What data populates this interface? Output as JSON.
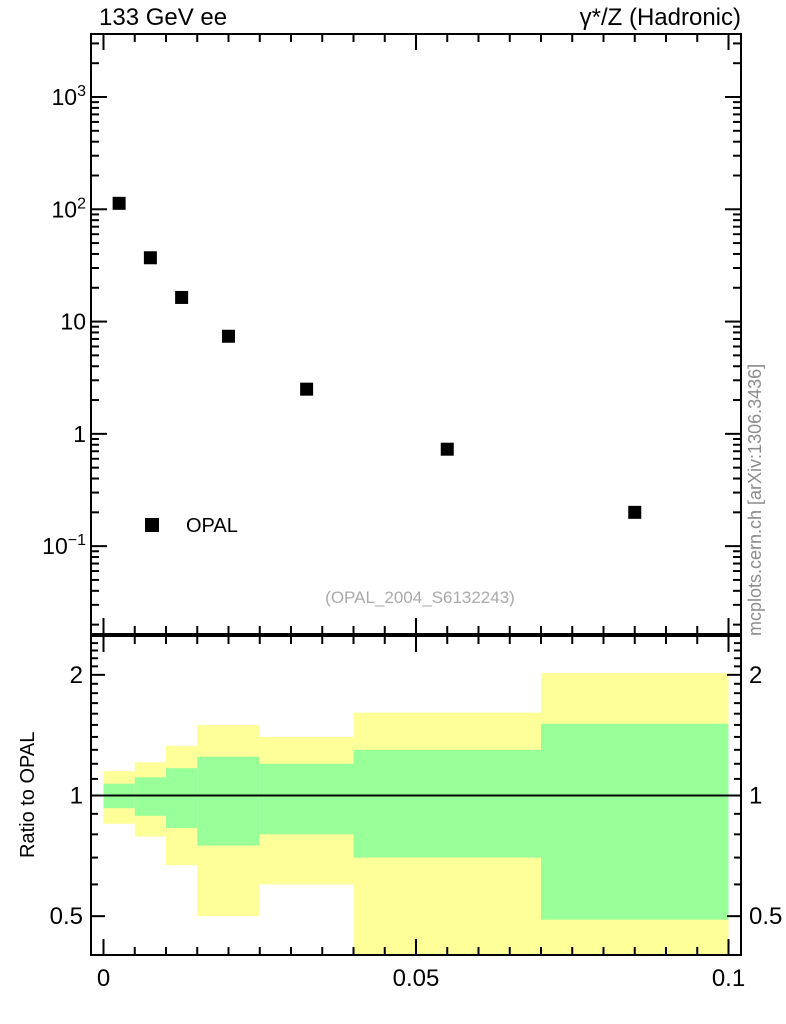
{
  "header": {
    "left_title": "133 GeV ee",
    "right_title": "γ*/Z (Hadronic)"
  },
  "legend": {
    "label": "OPAL",
    "marker": "filled-black-square"
  },
  "watermarks": {
    "analysis": "(OPAL_2004_S6132243)",
    "site": "mcplots.cern.ch [arXiv:1306.3436]"
  },
  "colors": {
    "band_outer": "#ffff99",
    "band_inner": "#99ff99",
    "marker": "#000000",
    "axis": "#000000",
    "watermark_gray": "#aaaaaa",
    "site_gray": "#8c8c8c"
  },
  "chart_data": [
    {
      "type": "scatter",
      "title": "133 GeV ee — γ*/Z (Hadronic)",
      "series": [
        {
          "name": "OPAL",
          "marker": "filled-square",
          "x": [
            0.0025,
            0.0075,
            0.0125,
            0.02,
            0.0325,
            0.055,
            0.085
          ],
          "y": [
            113,
            37,
            16.4,
            7.4,
            2.5,
            0.73,
            0.2
          ]
        }
      ],
      "xlabel": "",
      "ylabel": "",
      "x_range": [
        -0.002,
        0.102
      ],
      "y_range": [
        0.0165,
        3640
      ],
      "y_scale": "log",
      "grid": false,
      "legend_position": "inside-left-bottom",
      "yticks": [
        {
          "v": 1000,
          "base": "10",
          "exp": "3"
        },
        {
          "v": 100,
          "base": "10",
          "exp": "2"
        },
        {
          "v": 10,
          "base": "10",
          "exp": ""
        },
        {
          "v": 1,
          "base": "1",
          "exp": ""
        },
        {
          "v": 0.1,
          "base": "10",
          "exp": "−1"
        }
      ]
    },
    {
      "type": "area",
      "title": "Ratio panel with inner/outer uncertainty bands",
      "ylabel": "Ratio to OPAL",
      "x_range": [
        -0.002,
        0.102
      ],
      "y_range": [
        0.4,
        2.5
      ],
      "y_scale": "log",
      "reference_line": 1,
      "bin_edges": [
        0,
        0.005,
        0.01,
        0.015,
        0.025,
        0.04,
        0.07,
        0.1
      ],
      "band_outer_hi": [
        1.15,
        1.21,
        1.33,
        1.5,
        1.4,
        1.61,
        2.02
      ],
      "band_outer_lo": [
        0.85,
        0.79,
        0.67,
        0.5,
        0.6,
        0.39,
        0.0
      ],
      "band_inner_hi": [
        1.07,
        1.11,
        1.17,
        1.25,
        1.2,
        1.3,
        1.51
      ],
      "band_inner_lo": [
        0.93,
        0.89,
        0.83,
        0.75,
        0.8,
        0.7,
        0.49
      ],
      "yticks": [
        {
          "v": 2,
          "label": "2"
        },
        {
          "v": 1,
          "label": "1"
        },
        {
          "v": 0.5,
          "label": "0.5"
        }
      ],
      "xticks": [
        {
          "v": 0,
          "label": "0"
        },
        {
          "v": 0.05,
          "label": "0.05"
        },
        {
          "v": 0.1,
          "label": "0.1"
        }
      ],
      "x_minor_step": 0.005,
      "y_minor_step": 0.1
    }
  ]
}
